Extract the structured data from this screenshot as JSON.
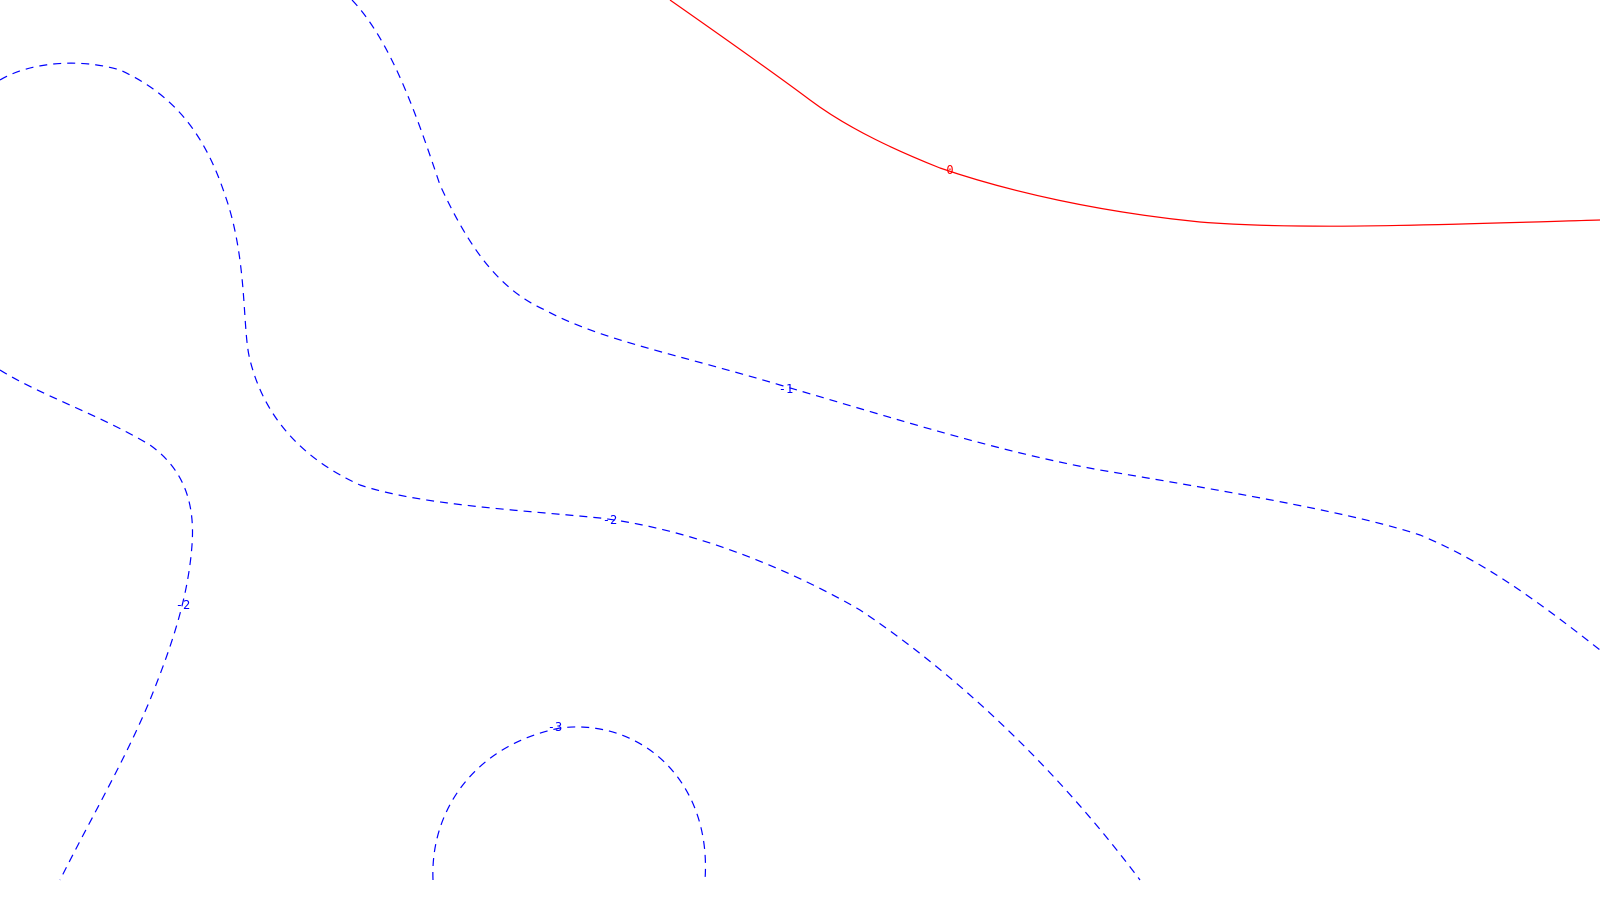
{
  "chart_data": {
    "type": "contour",
    "colors": {
      "zero": "#ff0000",
      "negative": "#0000ff",
      "background": "#ffffff"
    },
    "contours": [
      {
        "level": "0",
        "label": "0",
        "style": "solid",
        "color": "#ff0000"
      },
      {
        "level": "-1",
        "label": "-1",
        "style": "dashed",
        "color": "#0000ff"
      },
      {
        "level": "-2",
        "label": "-2",
        "style": "dashed",
        "color": "#0000ff"
      },
      {
        "level": "-2",
        "label": "-2",
        "style": "dashed",
        "color": "#0000ff"
      },
      {
        "level": "-3",
        "label": "-3",
        "style": "dashed",
        "color": "#0000ff"
      }
    ]
  }
}
